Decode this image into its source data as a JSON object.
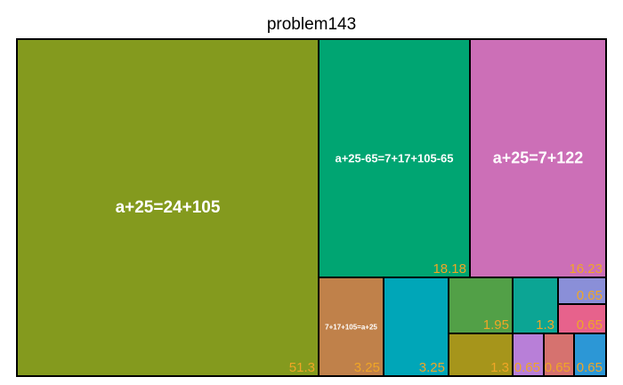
{
  "chart_data": {
    "type": "treemap",
    "title": "problem143",
    "value_color": "#f0a626",
    "items": [
      {
        "label": "a+25=24+105",
        "value": "51.3",
        "color": "#849a1e"
      },
      {
        "label": "a+25-65=7+17+105-65",
        "value": "18.18",
        "color": "#00a572"
      },
      {
        "label": "a+25=7+122",
        "value": "16.23",
        "color": "#cc6fb7"
      },
      {
        "label": "7+17+105=a+25",
        "value": "3.25",
        "color": "#c0814a"
      },
      {
        "label": "",
        "value": "3.25",
        "color": "#00a6b8"
      },
      {
        "label": "",
        "value": "1.95",
        "color": "#52a047"
      },
      {
        "label": "",
        "value": "1.3",
        "color": "#a6951b"
      },
      {
        "label": "",
        "value": "1.3",
        "color": "#0ca594"
      },
      {
        "label": "",
        "value": "0.65",
        "color": "#8a8fd8"
      },
      {
        "label": "",
        "value": "0.65",
        "color": "#e7628c"
      },
      {
        "label": "",
        "value": "0.65",
        "color": "#b87fd8"
      },
      {
        "label": "",
        "value": "0.65",
        "color": "#d6726f"
      },
      {
        "label": "",
        "value": "0.65",
        "color": "#2c97d6"
      }
    ]
  }
}
